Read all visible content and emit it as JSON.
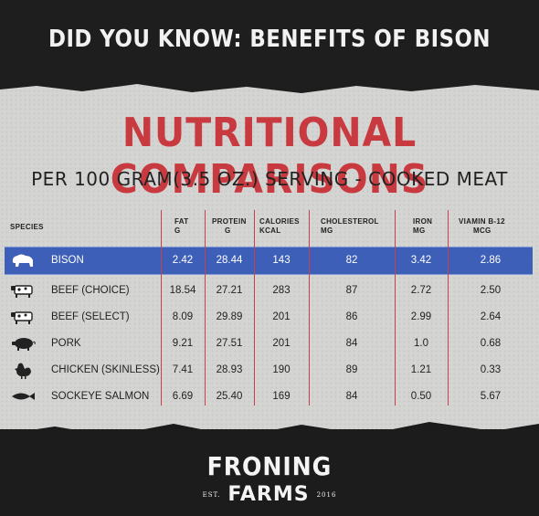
{
  "header": {
    "headline": "DID YOU KNOW: BENEFITS OF BISON"
  },
  "title": "NUTRITIONAL COMPARISONS",
  "subtitle": "PER 100 GRAM(3.5 OZ.) SERVING - COOKED MEAT",
  "table": {
    "species_header": "SPECIES",
    "columns": [
      {
        "line1": "FAT",
        "line2": "G"
      },
      {
        "line1": "PROTEIN",
        "line2": "G"
      },
      {
        "line1": "CALORIES",
        "line2": "KCAL"
      },
      {
        "line1": "CHOLESTEROL",
        "line2": "MG"
      },
      {
        "line1": "IRON",
        "line2": "MG"
      },
      {
        "line1": "VIAMIN B-12",
        "line2": "MCG"
      }
    ],
    "rows": [
      {
        "icon": "bison-icon",
        "name": "BISON",
        "values": [
          "2.42",
          "28.44",
          "143",
          "82",
          "3.42",
          "2.86"
        ],
        "highlight": true
      },
      {
        "icon": "cow-icon",
        "name": "BEEF (CHOICE)",
        "values": [
          "18.54",
          "27.21",
          "283",
          "87",
          "2.72",
          "2.50"
        ]
      },
      {
        "icon": "cow-icon",
        "name": "BEEF (SELECT)",
        "values": [
          "8.09",
          "29.89",
          "201",
          "86",
          "2.99",
          "2.64"
        ]
      },
      {
        "icon": "pig-icon",
        "name": "PORK",
        "values": [
          "9.21",
          "27.51",
          "201",
          "84",
          "1.0",
          "0.68"
        ]
      },
      {
        "icon": "chicken-icon",
        "name": "CHICKEN (SKINLESS)",
        "values": [
          "7.41",
          "28.93",
          "190",
          "89",
          "1.21",
          "0.33"
        ]
      },
      {
        "icon": "fish-icon",
        "name": "SOCKEYE SALMON",
        "values": [
          "6.69",
          "25.40",
          "169",
          "84",
          "0.50",
          "5.67"
        ]
      }
    ]
  },
  "logo": {
    "name": "FRONING",
    "sub": "FARMS",
    "est": "EST.",
    "year": "2016"
  },
  "colors": {
    "title_red": "#c83a3f",
    "highlight_blue": "#3e5fb7",
    "line_red": "#c8414a"
  }
}
